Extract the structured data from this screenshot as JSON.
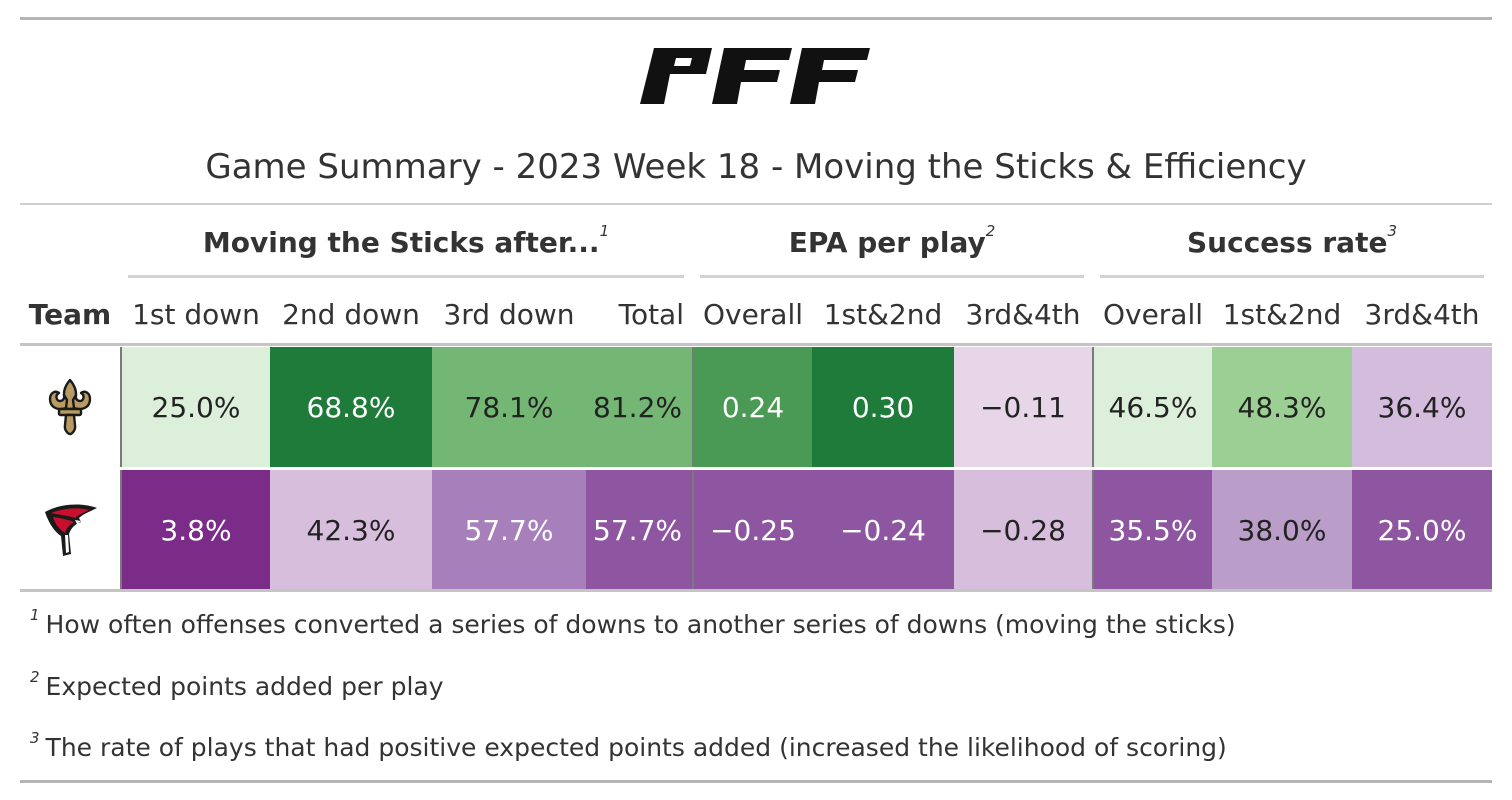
{
  "logo_text": "PFF",
  "title": "Game Summary - 2023 Week 18 - Moving the Sticks & Efficiency",
  "spanners": [
    {
      "label": "Moving the Sticks after...",
      "note": "1"
    },
    {
      "label": "EPA per play",
      "note": "2"
    },
    {
      "label": "Success rate",
      "note": "3"
    }
  ],
  "columns": [
    "Team",
    "1st down",
    "2nd down",
    "3rd down",
    "Total",
    "Overall",
    "1st&2nd",
    "3rd&4th",
    "Overall",
    "1st&2nd",
    "3rd&4th"
  ],
  "rows": [
    {
      "team_icon": "saints-fleur-de-lis-icon",
      "values": [
        "25.0%",
        "68.8%",
        "78.1%",
        "81.2%",
        "0.24",
        "0.30",
        "−0.11",
        "46.5%",
        "48.3%",
        "36.4%"
      ],
      "colors": [
        "#dcefdb",
        "#1e7b3a",
        "#74b775",
        "#74b775",
        "#4a9a55",
        "#1e7b3a",
        "#e7d5e8",
        "#dcefdb",
        "#9bcf93",
        "#d4bcdc"
      ]
    },
    {
      "team_icon": "falcons-logo-icon",
      "values": [
        "3.8%",
        "42.3%",
        "57.7%",
        "57.7%",
        "−0.25",
        "−0.24",
        "−0.28",
        "35.5%",
        "38.0%",
        "25.0%"
      ],
      "colors": [
        "#7b2c88",
        "#d8bedd",
        "#a67fbb",
        "#8e56a0",
        "#8e56a0",
        "#8e56a0",
        "#d8bedd",
        "#8e56a0",
        "#bb9dc9",
        "#8e56a0"
      ]
    }
  ],
  "footnotes": [
    {
      "mark": "1",
      "text": "How often offenses converted a series of downs to another series of downs (moving the sticks)"
    },
    {
      "mark": "2",
      "text": "Expected points added per play"
    },
    {
      "mark": "3",
      "text": "The rate of plays that had positive expected points added (increased the likelihood of scoring)"
    }
  ]
}
